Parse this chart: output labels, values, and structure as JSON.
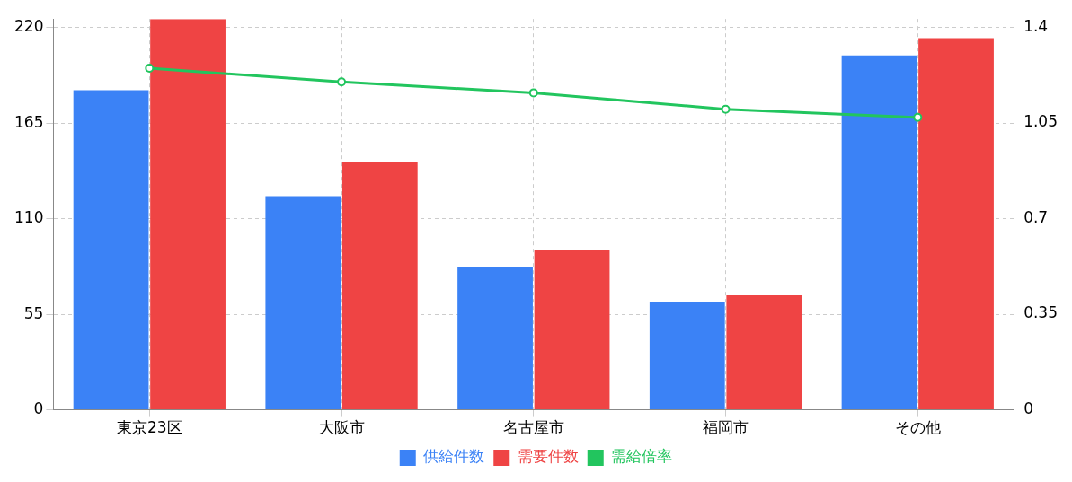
{
  "chart_data": {
    "type": "bar",
    "categories": [
      "東京23区",
      "大阪市",
      "名古屋市",
      "福岡市",
      "その他"
    ],
    "series": [
      {
        "name": "供給件数",
        "color": "#3b82f6",
        "values": [
          184,
          123,
          82,
          62,
          204
        ]
      },
      {
        "name": "需要件数",
        "color": "#ef4444",
        "values": [
          225,
          143,
          92,
          66,
          214
        ]
      },
      {
        "name": "需給倍率",
        "type": "line",
        "axis": "y2",
        "color": "#22c55e",
        "values": [
          1.25,
          1.2,
          1.16,
          1.1,
          1.07
        ],
        "marker": "circle"
      }
    ],
    "ylim": [
      0,
      225
    ],
    "yticks": [
      0,
      55,
      110,
      165,
      220
    ],
    "y2lim": [
      0,
      1.43
    ],
    "y2ticks": [
      0,
      0.35,
      0.7,
      1.05,
      1.4
    ],
    "grid": true,
    "legend": "bottom"
  }
}
